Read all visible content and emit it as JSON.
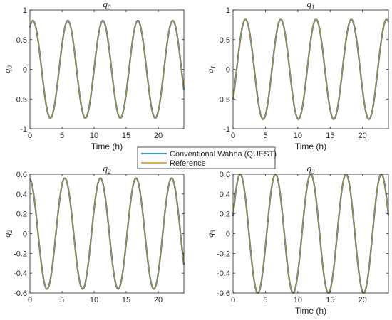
{
  "chart_data": [
    {
      "type": "line",
      "title": "q0",
      "title_main": "q",
      "title_sub": "0",
      "xlabel": "Time (h)",
      "ylabel": "q0",
      "ylabel_main": "q",
      "ylabel_sub": "0",
      "xlim": [
        0,
        24
      ],
      "ylim": [
        -1,
        1
      ],
      "xticks": [
        0,
        5,
        10,
        15,
        20
      ],
      "yticks": [
        -1,
        -0.5,
        0,
        0.5,
        1
      ],
      "ytick_labels": [
        "-1",
        "-0.5",
        "0",
        "0.5",
        "1"
      ],
      "grid": false,
      "series": [
        {
          "name": "Conventional Wahba (QUEST)",
          "color": "#0072bd",
          "model": {
            "amplitude": 0.82,
            "period_h": 5.45,
            "phase_rad": 1.04
          }
        },
        {
          "name": "Reference",
          "color": "#c8901e",
          "model": {
            "amplitude": 0.82,
            "period_h": 5.45,
            "phase_rad": 1.04
          }
        }
      ]
    },
    {
      "type": "line",
      "title": "q1",
      "title_main": "q",
      "title_sub": "1",
      "xlabel": "Time (h)",
      "ylabel": "q1",
      "ylabel_main": "q",
      "ylabel_sub": "1",
      "xlim": [
        0,
        24
      ],
      "ylim": [
        -1,
        1
      ],
      "xticks": [
        0,
        5,
        10,
        15,
        20
      ],
      "yticks": [
        -1,
        -0.5,
        0,
        0.5,
        1
      ],
      "ytick_labels": [
        "-1",
        "-0.5",
        "0",
        "0.5",
        "1"
      ],
      "grid": false,
      "series": [
        {
          "name": "Conventional Wahba (QUEST)",
          "color": "#0072bd",
          "model": {
            "amplitude": 0.84,
            "period_h": 5.45,
            "phase_rad": -0.64
          }
        },
        {
          "name": "Reference",
          "color": "#c8901e",
          "model": {
            "amplitude": 0.84,
            "period_h": 5.45,
            "phase_rad": -0.64
          }
        }
      ]
    },
    {
      "type": "line",
      "title": "q2",
      "title_main": "q",
      "title_sub": "2",
      "xlabel": "",
      "ylabel": "q2",
      "ylabel_main": "q",
      "ylabel_sub": "2",
      "xlim": [
        0,
        24
      ],
      "ylim": [
        -0.6,
        0.6
      ],
      "xticks": [
        0,
        5,
        10,
        15,
        20
      ],
      "yticks": [
        -0.6,
        -0.4,
        -0.2,
        0,
        0.2,
        0.4,
        0.6
      ],
      "ytick_labels": [
        "-0.6",
        "-0.4",
        "-0.2",
        "0",
        "0.2",
        "0.4",
        "0.6"
      ],
      "grid": false,
      "series": [
        {
          "name": "Conventional Wahba (QUEST)",
          "color": "#0072bd",
          "model": {
            "amplitude": 0.56,
            "period_h": 5.55,
            "phase_rad": 1.7
          }
        },
        {
          "name": "Reference",
          "color": "#c8901e",
          "model": {
            "amplitude": 0.56,
            "period_h": 5.55,
            "phase_rad": 1.7
          }
        }
      ]
    },
    {
      "type": "line",
      "title": "q3",
      "title_main": "q",
      "title_sub": "3",
      "xlabel": "Time (h)",
      "ylabel": "q3",
      "ylabel_main": "q",
      "ylabel_sub": "3",
      "xlim": [
        0,
        24
      ],
      "ylim": [
        -0.6,
        0.6
      ],
      "xticks": [
        0,
        5,
        10,
        15,
        20
      ],
      "yticks": [
        -0.6,
        -0.4,
        -0.2,
        0,
        0.2,
        0.4,
        0.6
      ],
      "ytick_labels": [
        "-0.6",
        "-0.4",
        "-0.2",
        "0",
        "0.2",
        "0.4",
        "0.6"
      ],
      "grid": false,
      "series": [
        {
          "name": "Conventional Wahba (QUEST)",
          "color": "#0072bd",
          "model": {
            "amplitude": 0.6,
            "period_h": 5.45,
            "phase_rad": 0.3
          }
        },
        {
          "name": "Reference",
          "color": "#c8901e",
          "model": {
            "amplitude": 0.6,
            "period_h": 5.45,
            "phase_rad": 0.3
          }
        }
      ]
    }
  ],
  "legend": {
    "placement": "center",
    "items": [
      {
        "label": "Conventional Wahba (QUEST)",
        "color": "#0072bd"
      },
      {
        "label": "Reference",
        "color": "#c8901e"
      }
    ]
  }
}
